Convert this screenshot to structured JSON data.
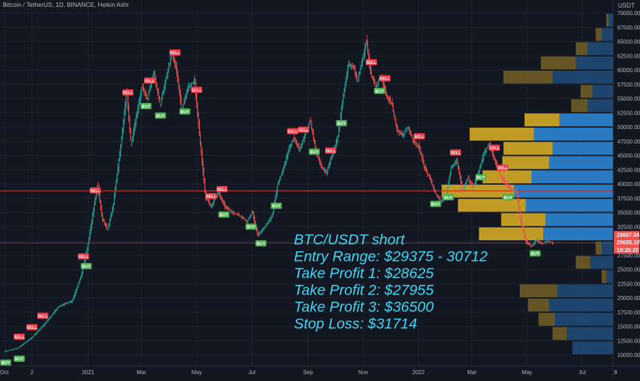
{
  "header": {
    "title": "Bitcoin / TetherUS, 1D, BINANCE, Heikin Ashi",
    "currency": "USDT"
  },
  "colors": {
    "background": "#131722",
    "bull": "#26a69a",
    "bear": "#ef5350",
    "resistance_line": "#e91e1e",
    "vp_up": "#2a7fc9",
    "vp_down": "#c9a227",
    "annotation": "#3dd6f5"
  },
  "annotation": {
    "lines": [
      "BTC/USDT short",
      "Entry Range: $29375 - 30712",
      "Take Profit 1: $28625",
      "Take Profit 2: $27955",
      "Take Profit 3: $36500",
      "Stop Loss: $31714"
    ]
  },
  "price_tags": [
    {
      "label": "29657.04",
      "value": 29657.04
    },
    {
      "label": "29655.15",
      "value": 29655.15
    },
    {
      "label": "19:28:20",
      "value": 28900
    }
  ],
  "chart_data": {
    "type": "candlestick",
    "style": "Heikin Ashi",
    "ylim": [
      9500,
      71000
    ],
    "y_ticks": [
      {
        "value": 70000,
        "label": "70000.00"
      },
      {
        "value": 67500,
        "label": "67500.00"
      },
      {
        "value": 65000,
        "label": "65000.00"
      },
      {
        "value": 62500,
        "label": "62500.00"
      },
      {
        "value": 60000,
        "label": "60000.00"
      },
      {
        "value": 57500,
        "label": "57500.00"
      },
      {
        "value": 55000,
        "label": "55000.00"
      },
      {
        "value": 52500,
        "label": "52500.00"
      },
      {
        "value": 50000,
        "label": "50000.00"
      },
      {
        "value": 47500,
        "label": "47500.00"
      },
      {
        "value": 45000,
        "label": "45000.00"
      },
      {
        "value": 42500,
        "label": "42500.00"
      },
      {
        "value": 40000,
        "label": "40000.00"
      },
      {
        "value": 37500,
        "label": "37500.00"
      },
      {
        "value": 35000,
        "label": "35000.00"
      },
      {
        "value": 32500,
        "label": "32500.00"
      },
      {
        "value": 30000,
        "label": "30000.00"
      },
      {
        "value": 27500,
        "label": "27500.00"
      },
      {
        "value": 25000,
        "label": "25000.00"
      },
      {
        "value": 22500,
        "label": "22500.00"
      },
      {
        "value": 20000,
        "label": "20000.00"
      },
      {
        "value": 17500,
        "label": "17500.00"
      },
      {
        "value": 15000,
        "label": "15000.00"
      },
      {
        "value": 12500,
        "label": "12500.00"
      },
      {
        "value": 10000,
        "label": "10000.00"
      }
    ],
    "x_ticks": [
      {
        "label": "Oct",
        "index": 0
      },
      {
        "label": "2",
        "index": 30
      },
      {
        "label": "2021",
        "index": 92
      },
      {
        "label": "Mar",
        "index": 151
      },
      {
        "label": "May",
        "index": 212
      },
      {
        "label": "Jul",
        "index": 273
      },
      {
        "label": "Sep",
        "index": 335
      },
      {
        "label": "Nov",
        "index": 396
      },
      {
        "label": "2022",
        "index": 457
      },
      {
        "label": "Mar",
        "index": 516
      },
      {
        "label": "May",
        "index": 577
      },
      {
        "label": "Jul",
        "index": 638
      },
      {
        "label": "8",
        "index": 675
      }
    ],
    "price_keypoints": [
      [
        0,
        10600
      ],
      [
        15,
        11200
      ],
      [
        30,
        13000
      ],
      [
        45,
        15500
      ],
      [
        60,
        18500
      ],
      [
        75,
        19500
      ],
      [
        85,
        24000
      ],
      [
        92,
        29000
      ],
      [
        98,
        35000
      ],
      [
        103,
        40000
      ],
      [
        108,
        34000
      ],
      [
        114,
        32000
      ],
      [
        120,
        36000
      ],
      [
        128,
        46000
      ],
      [
        135,
        56000
      ],
      [
        140,
        47000
      ],
      [
        146,
        52000
      ],
      [
        152,
        57000
      ],
      [
        158,
        55000
      ],
      [
        165,
        59500
      ],
      [
        172,
        54000
      ],
      [
        178,
        58000
      ],
      [
        185,
        63000
      ],
      [
        190,
        60000
      ],
      [
        196,
        53000
      ],
      [
        203,
        57000
      ],
      [
        210,
        58000
      ],
      [
        216,
        48000
      ],
      [
        222,
        38000
      ],
      [
        228,
        36000
      ],
      [
        236,
        38500
      ],
      [
        244,
        36000
      ],
      [
        252,
        35000
      ],
      [
        260,
        34500
      ],
      [
        268,
        33500
      ],
      [
        274,
        35000
      ],
      [
        280,
        31000
      ],
      [
        288,
        32500
      ],
      [
        296,
        34500
      ],
      [
        302,
        40000
      ],
      [
        308,
        42500
      ],
      [
        315,
        46500
      ],
      [
        320,
        48000
      ],
      [
        326,
        46000
      ],
      [
        332,
        48500
      ],
      [
        338,
        51000
      ],
      [
        344,
        46000
      ],
      [
        350,
        43000
      ],
      [
        356,
        42000
      ],
      [
        362,
        45000
      ],
      [
        368,
        48000
      ],
      [
        374,
        55000
      ],
      [
        380,
        61000
      ],
      [
        386,
        60500
      ],
      [
        390,
        58000
      ],
      [
        396,
        62000
      ],
      [
        400,
        65000
      ],
      [
        404,
        60000
      ],
      [
        410,
        57000
      ],
      [
        416,
        59000
      ],
      [
        422,
        55500
      ],
      [
        428,
        54000
      ],
      [
        434,
        49500
      ],
      [
        440,
        48500
      ],
      [
        446,
        50000
      ],
      [
        452,
        47500
      ],
      [
        458,
        46500
      ],
      [
        464,
        43000
      ],
      [
        470,
        41000
      ],
      [
        476,
        38500
      ],
      [
        482,
        37000
      ],
      [
        488,
        38000
      ],
      [
        494,
        43000
      ],
      [
        500,
        44000
      ],
      [
        506,
        39000
      ],
      [
        512,
        41000
      ],
      [
        518,
        39500
      ],
      [
        524,
        42000
      ],
      [
        530,
        45500
      ],
      [
        536,
        47000
      ],
      [
        542,
        44000
      ],
      [
        548,
        41500
      ],
      [
        554,
        40000
      ],
      [
        560,
        39000
      ],
      [
        566,
        38800
      ],
      [
        570,
        34000
      ],
      [
        576,
        30000
      ],
      [
        582,
        29000
      ],
      [
        588,
        30200
      ],
      [
        594,
        29500
      ],
      [
        600,
        30000
      ],
      [
        606,
        29657
      ]
    ],
    "signals": [
      {
        "type": "BUY",
        "index": 1
      },
      {
        "type": "BUY",
        "index": 16
      },
      {
        "type": "SELL",
        "index": 16
      },
      {
        "type": "SELL",
        "index": 30
      },
      {
        "type": "SELL",
        "index": 42
      },
      {
        "type": "SELL",
        "index": 100
      },
      {
        "type": "SELL",
        "index": 87
      },
      {
        "type": "BUY",
        "index": 90
      },
      {
        "type": "SELL",
        "index": 136
      },
      {
        "type": "SELL",
        "index": 160
      },
      {
        "type": "BUY",
        "index": 156
      },
      {
        "type": "BUY",
        "index": 172
      },
      {
        "type": "SELL",
        "index": 188
      },
      {
        "type": "SELL",
        "index": 212
      },
      {
        "type": "BUY",
        "index": 199
      },
      {
        "type": "SELL",
        "index": 228
      },
      {
        "type": "SELL",
        "index": 240
      },
      {
        "type": "BUY",
        "index": 242
      },
      {
        "type": "BUY",
        "index": 272
      },
      {
        "type": "BUY",
        "index": 283
      },
      {
        "type": "BUY",
        "index": 300
      },
      {
        "type": "SELL",
        "index": 318
      },
      {
        "type": "SELL",
        "index": 330
      },
      {
        "type": "BUY",
        "index": 342
      },
      {
        "type": "SELL",
        "index": 360
      },
      {
        "type": "BUY",
        "index": 372
      },
      {
        "type": "SELL",
        "index": 405
      },
      {
        "type": "SELL",
        "index": 420
      },
      {
        "type": "BUY",
        "index": 414
      },
      {
        "type": "SELL",
        "index": 458
      },
      {
        "type": "BUY",
        "index": 476
      },
      {
        "type": "BUY",
        "index": 490
      },
      {
        "type": "SELL",
        "index": 498
      },
      {
        "type": "SELL",
        "index": 541
      },
      {
        "type": "BUY",
        "index": 526
      },
      {
        "type": "SELL",
        "index": 550
      },
      {
        "type": "BUY",
        "index": 556
      },
      {
        "type": "BUY",
        "index": 586
      }
    ],
    "horizontal_lines": [
      {
        "value": 38800,
        "color": "#e91e1e"
      },
      {
        "value": 29657,
        "color": "#6b4b4b"
      }
    ],
    "volume_profile": {
      "bin_size": 2500,
      "bins": [
        {
          "low": 10000,
          "up": 0.35,
          "down": 0.0
        },
        {
          "low": 12500,
          "up": 0.4,
          "down": 0.12
        },
        {
          "low": 15000,
          "up": 0.5,
          "down": 0.14
        },
        {
          "low": 17500,
          "up": 0.55,
          "down": 0.18
        },
        {
          "low": 20000,
          "up": 0.48,
          "down": 0.32
        },
        {
          "low": 22500,
          "up": 0.06,
          "down": 0.04
        },
        {
          "low": 25000,
          "up": 0.2,
          "down": 0.12
        },
        {
          "low": 27500,
          "up": 0.1,
          "down": 0.05
        },
        {
          "low": 30000,
          "up": 0.6,
          "down": 0.55
        },
        {
          "low": 32500,
          "up": 0.58,
          "down": 0.38
        },
        {
          "low": 35000,
          "up": 0.75,
          "down": 0.58
        },
        {
          "low": 37500,
          "up": 0.85,
          "down": 0.62
        },
        {
          "low": 40000,
          "up": 0.7,
          "down": 0.42
        },
        {
          "low": 42500,
          "up": 0.55,
          "down": 0.4
        },
        {
          "low": 45000,
          "up": 0.52,
          "down": 0.42
        },
        {
          "low": 47500,
          "up": 0.68,
          "down": 0.55
        },
        {
          "low": 50000,
          "up": 0.46,
          "down": 0.3
        },
        {
          "low": 52500,
          "up": 0.22,
          "down": 0.14
        },
        {
          "low": 55000,
          "up": 0.18,
          "down": 0.1
        },
        {
          "low": 57500,
          "up": 0.52,
          "down": 0.42
        },
        {
          "low": 60000,
          "up": 0.32,
          "down": 0.3
        },
        {
          "low": 62500,
          "up": 0.22,
          "down": 0.1
        },
        {
          "low": 65000,
          "up": 0.1,
          "down": 0.05
        },
        {
          "low": 67500,
          "up": 0.04,
          "down": 0.02
        }
      ]
    }
  }
}
